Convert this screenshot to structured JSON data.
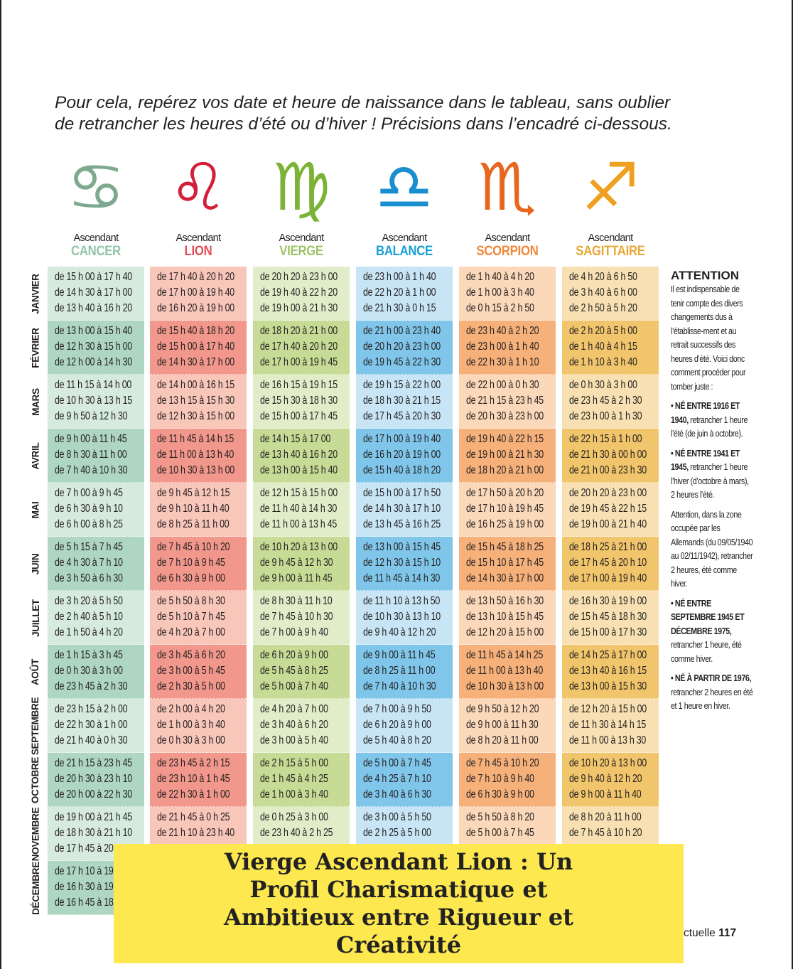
{
  "intro": {
    "line1": "Pour cela, repérez vos date et heure de naissance dans le tableau, sans oublier",
    "line2": "de retrancher les heures d’été ou d’hiver ! Précisions dans l’encadré ci-dessous."
  },
  "signs": [
    {
      "ascendant": "Ascendant",
      "name": "CANCER",
      "icon": "cancer-zodiac-icon",
      "glyph": "♋",
      "color": "#8fc4a8",
      "icon_color": "#7fa98e",
      "light": "#d6eade",
      "dark": "#aed6c3"
    },
    {
      "ascendant": "Ascendant",
      "name": "LION",
      "icon": "leo-zodiac-icon",
      "glyph": "♌",
      "color": "#e0505a",
      "icon_color": "#d2203a",
      "light": "#f9c6ba",
      "dark": "#f1978b"
    },
    {
      "ascendant": "Ascendant",
      "name": "VIERGE",
      "icon": "virgo-zodiac-icon",
      "glyph": "♍",
      "color": "#9cc46a",
      "icon_color": "#7cb236",
      "light": "#e1edc8",
      "dark": "#c6dc96"
    },
    {
      "ascendant": "Ascendant",
      "name": "BALANCE",
      "icon": "libra-zodiac-icon",
      "glyph": "♎",
      "color": "#1a9fd4",
      "icon_color": "#1a8fd0",
      "light": "#c7e5f5",
      "dark": "#80c6ea"
    },
    {
      "ascendant": "Ascendant",
      "name": "SCORPION",
      "icon": "scorpio-zodiac-icon",
      "glyph": "♏",
      "color": "#f0883a",
      "icon_color": "#e8661e",
      "light": "#fbd8b9",
      "dark": "#f6b17b"
    },
    {
      "ascendant": "Ascendant",
      "name": "SAGITTAIRE",
      "icon": "sagittarius-zodiac-icon",
      "glyph": "♐",
      "color": "#e6a835",
      "icon_color": "#f0a020",
      "light": "#f8e0b2",
      "dark": "#f0c56c"
    }
  ],
  "table": {
    "rows": [
      {
        "month": "JANVIER",
        "cells": [
          [
            "de 15 h 00 à 17 h 40",
            "de 14 h 30 à 17 h 00",
            "de 13 h 40 à 16 h 20"
          ],
          [
            "de 17 h 40 à 20 h 20",
            "de 17 h 00 à 19 h 40",
            "de 16 h 20 à 19 h 00"
          ],
          [
            "de 20 h 20 à 23 h 00",
            "de 19 h 40 à 22 h 20",
            "de 19 h 00 à 21 h 30"
          ],
          [
            "de 23 h 00 à 1 h 40",
            "de 22 h 20 à 1 h 00",
            "de 21 h 30 à 0 h 15"
          ],
          [
            "de 1 h 40 à 4 h 20",
            "de 1 h 00 à 3 h 40",
            "de 0 h 15 à 2 h 50"
          ],
          [
            "de 4 h 20 à 6 h 50",
            "de 3 h 40 à 6 h 00",
            "de 2 h 50 à 5 h 20"
          ]
        ]
      },
      {
        "month": "FÉVRIER",
        "cells": [
          [
            "de 13 h 00 à 15 h 40",
            "de 12 h 30 à 15 h 00",
            "de 12 h 00 à 14 h 30"
          ],
          [
            "de 15 h 40 à 18 h 20",
            "de 15 h 00 à 17 h 40",
            "de 14 h 30 à 17 h 00"
          ],
          [
            "de 18 h 20 à 21 h 00",
            "de 17 h 40 à 20 h 20",
            "de 17 h 00 à 19 h 45"
          ],
          [
            "de 21 h 00 à 23 h 40",
            "de 20 h 20 à 23 h 00",
            "de 19 h 45 à 22 h 30"
          ],
          [
            "de 23 h 40 à 2 h 20",
            "de 23 h 00 à 1 h 40",
            "de 22 h 30 à 1 h 10"
          ],
          [
            "de 2 h 20 à 5 h 00",
            "de 1 h 40 à 4 h 15",
            "de 1 h 10 à 3 h 40"
          ]
        ]
      },
      {
        "month": "MARS",
        "cells": [
          [
            "de 11 h 15 à 14 h 00",
            "de 10 h 30 à 13 h 15",
            "de 9 h 50 à 12 h 30"
          ],
          [
            "de 14 h 00 à 16 h 15",
            "de 13 h 15 à 15 h 30",
            "de 12 h 30 à 15 h 00"
          ],
          [
            "de 16 h 15 à 19 h 15",
            "de 15 h 30 à 18 h 30",
            "de 15 h 00 à 17 h 45"
          ],
          [
            "de 19 h 15 à 22 h 00",
            "de 18 h 30 à 21 h 15",
            "de 17 h 45 à 20 h 30"
          ],
          [
            "de 22 h 00 à 0 h 30",
            "de 21 h 15 à 23 h 45",
            "de 20 h 30 à 23 h 00"
          ],
          [
            "de 0 h 30 à 3 h 00",
            "de 23 h 45 à 2 h 30",
            "de 23 h 00 à 1 h 30"
          ]
        ]
      },
      {
        "month": "AVRIL",
        "cells": [
          [
            "de 9 h 00 à 11 h 45",
            "de 8 h 30 à 11 h 00",
            "de 7 h 40 à 10 h 30"
          ],
          [
            "de 11 h 45 à 14 h 15",
            "de 11 h 00 à 13 h 40",
            "de 10 h 30 à 13 h 00"
          ],
          [
            "de 14 h 15 à 17 00",
            "de 13 h 40 à 16 h 20",
            "de 13 h 00 à 15 h 40"
          ],
          [
            "de 17 h 00 à 19 h 40",
            "de 16 h 20 à 19 h 00",
            "de 15 h 40 à 18 h 20"
          ],
          [
            "de 19 h 40 à 22 h 15",
            "de 19 h 00 à 21 h 30",
            "de 18 h 20 à 21 h 00"
          ],
          [
            "de 22 h 15 à 1 h 00",
            "de 21 h 30 à 00 h 00",
            "de 21 h 00 à 23 h 30"
          ]
        ]
      },
      {
        "month": "MAI",
        "cells": [
          [
            "de 7 h 00 à 9 h 45",
            "de 6 h 30 à 9 h 10",
            "de 6 h 00 à 8 h 25"
          ],
          [
            "de 9 h 45 à 12 h 15",
            "de 9 h 10 à 11 h 40",
            "de 8 h 25 à 11 h 00"
          ],
          [
            "de 12 h 15 à 15 h 00",
            "de 11 h 40 à 14 h 30",
            "de 11 h 00 à 13 h 45"
          ],
          [
            "de 15 h 00 à 17 h 50",
            "de 14 h 30 à 17 h 10",
            "de 13 h 45 à 16 h 25"
          ],
          [
            "de 17 h 50 à 20 h 20",
            "de 17 h 10 à 19 h 45",
            "de 16 h 25 à 19 h 00"
          ],
          [
            "de 20 h 20 à 23 h 00",
            "de 19 h 45 à 22 h 15",
            "de 19 h 00 à 21 h 40"
          ]
        ]
      },
      {
        "month": "JUIN",
        "cells": [
          [
            "de 5 h 15 à 7 h 45",
            "de 4 h 30 à 7 h 10",
            "de 3 h 50 à 6 h 30"
          ],
          [
            "de 7 h 45 à 10 h 20",
            "de 7 h 10 à 9 h 45",
            "de 6 h 30 à 9 h 00"
          ],
          [
            "de 10 h 20 à 13 h 00",
            "de 9 h 45 à 12 h 30",
            "de 9 h 00 à 11 h 45"
          ],
          [
            "de 13 h 00 à 15 h 45",
            "de 12 h 30 à 15 h 10",
            "de 11 h 45 à 14 h 30"
          ],
          [
            "de 15 h 45 à 18 h 25",
            "de 15 h 10 à 17 h 45",
            "de 14 h 30 à 17 h 00"
          ],
          [
            "de 18 h 25 à 21 h 00",
            "de 17 h 45 à 20 h 10",
            "de 17 h 00 à 19 h 40"
          ]
        ]
      },
      {
        "month": "JUILLET",
        "cells": [
          [
            "de 3 h 20 à 5 h 50",
            "de 2 h 40 à 5 h 10",
            "de 1 h 50 à 4 h 20"
          ],
          [
            "de 5 h 50 à 8 h 30",
            "de 5 h 10 à 7 h 45",
            "de 4 h 20 à 7 h 00"
          ],
          [
            "de 8 h 30 à 11 h 10",
            "de 7 h 45 à 10 h 30",
            "de 7 h 00 à 9 h 40"
          ],
          [
            "de 11 h 10 à 13 h 50",
            "de 10 h 30 à 13 h 10",
            "de 9 h 40 à 12 h 20"
          ],
          [
            "de 13 h 50 à 16 h 30",
            "de 13 h 10 à 15 h 45",
            "de 12 h 20 à 15 h 00"
          ],
          [
            "de 16 h 30 à 19 h 00",
            "de 15 h 45 à 18 h 30",
            "de 15 h 00 à 17 h 30"
          ]
        ]
      },
      {
        "month": "AOÛT",
        "cells": [
          [
            "de 1 h 15 à 3 h 45",
            "de 0 h 30 à 3 h 00",
            "de 23 h 45 à 2 h 30"
          ],
          [
            "de 3 h 45 à 6 h 20",
            "de 3 h 00 à 5 h 45",
            "de 2 h 30 à 5 h 00"
          ],
          [
            "de 6 h 20 à 9 h 00",
            "de 5 h 45 à 8 h 25",
            "de 5 h 00 à 7 h 40"
          ],
          [
            "de 9 h 00 à 11 h 45",
            "de 8 h 25 à 11 h 00",
            "de 7 h 40 à 10 h 30"
          ],
          [
            "de 11 h 45 à 14 h 25",
            "de 11 h 00 à 13 h 40",
            "de 10 h 30 à 13 h 00"
          ],
          [
            "de 14 h 25 à 17 h 00",
            "de 13 h 40 à 16 h 15",
            "de 13 h 00 à 15 h 30"
          ]
        ]
      },
      {
        "month": "SEPTEMBRE",
        "cells": [
          [
            "de 23 h 15 à 2 h 00",
            "de 22 h 30 à 1 h 00",
            "de 21 h 40 à 0 h 30"
          ],
          [
            "de 2 h 00 à 4 h 20",
            "de 1 h 00 à 3 h 40",
            "de 0 h 30 à 3 h 00"
          ],
          [
            "de 4 h 20 à 7 h 00",
            "de 3 h 40 à 6 h 20",
            "de 3 h 00 à 5 h 40"
          ],
          [
            "de 7 h 00 à 9 h 50",
            "de 6 h 20 à 9 h 00",
            "de 5 h 40 à 8 h 20"
          ],
          [
            "de 9 h 50 à 12 h 20",
            "de 9 h 00 à 11 h 30",
            "de 8 h 20 à 11 h 00"
          ],
          [
            "de 12 h 20 à 15 h 00",
            "de 11 h 30 à 14 h 15",
            "de 11 h 00 à 13 h 30"
          ]
        ]
      },
      {
        "month": "OCTOBRE",
        "cells": [
          [
            "de 21 h 15 à 23 h 45",
            "de 20 h 30 à 23 h 10",
            "de 20 h 00 à 22 h 30"
          ],
          [
            "de 23 h 45 à 2 h 15",
            "de 23 h 10 à 1 h 45",
            "de 22 h 30 à 1 h 00"
          ],
          [
            "de 2 h 15 à 5 h 00",
            "de 1 h 45 à 4 h 25",
            "de 1 h 00 à 3 h 40"
          ],
          [
            "de 5 h 00 à 7 h 45",
            "de 4 h 25 à 7 h 10",
            "de 3 h 40 à 6 h 30"
          ],
          [
            "de 7 h 45 à 10 h 20",
            "de 7 h 10 à 9 h 40",
            "de 6 h 30 à 9 h 00"
          ],
          [
            "de 10 h 20 à 13 h 00",
            "de 9 h 40 à 12 h 20",
            "de 9 h 00 à 11 h 40"
          ]
        ]
      },
      {
        "month": "NOVEMBRE",
        "cells": [
          [
            "de 19 h 00 à 21 h 45",
            "de 18 h 30 à 21 h 10",
            "de 17 h 45 à 20"
          ],
          [
            "de 21 h 45 à 0 h 25",
            "de 21 h 10 à 23 h 40"
          ],
          [
            "de 0 h 25 à 3 h 00",
            "de 23 h 40 à 2 h 25"
          ],
          [
            "de 3 h 00 à 5 h 50",
            "de 2 h 25 à 5 h 00"
          ],
          [
            "de 5 h 50 à 8 h 20",
            "de 5 h 00 à 7 h 45"
          ],
          [
            "de 8 h 20 à 11 h 00",
            "de 7 h 45 à 10 h 20"
          ]
        ]
      },
      {
        "month": "DÉCEMBRE",
        "cells": [
          [
            "de 17 h 10 à 19",
            "de 16 h 30 à 19",
            "de 16 h 45 à 18"
          ],
          [],
          [],
          [],
          [],
          []
        ]
      }
    ]
  },
  "attention": {
    "title": "ATTENTION",
    "intro": "Il est indispensable de tenir compte des divers changements dus à l’établisse-ment et au retrait successifs des heures d’été. Voici donc comment procéder pour tomber juste :",
    "items": [
      {
        "bold": "• NÉ ENTRE 1916 ET 1940,",
        "text": " retrancher 1 heure l’été (de juin à octobre)."
      },
      {
        "bold": "• NÉ ENTRE 1941 ET 1945,",
        "text": " retrancher 1 heure l’hiver (d’octobre à mars), 2 heures l’été."
      },
      {
        "bold": "",
        "text": "Attention, dans la zone occupée par les Allemands (du 09/05/1940 au 02/11/1942), retrancher 2 heures, été comme hiver."
      },
      {
        "bold": "• NÉ ENTRE SEPTEMBRE 1945 ET DÉCEMBRE 1975,",
        "text": " retrancher 1 heure, été comme hiver."
      },
      {
        "bold": "• NÉ À PARTIR DE 1976,",
        "text": " retrancher 2 heures en été et 1 heure en hiver."
      }
    ]
  },
  "banner": {
    "title": "Vierge Ascendant Lion : Un Profil Charismatique et Ambitieux entre Rigueur et Créativité",
    "color": "#fde84f"
  },
  "footer": {
    "text": "ctuelle",
    "page_number": "117"
  }
}
